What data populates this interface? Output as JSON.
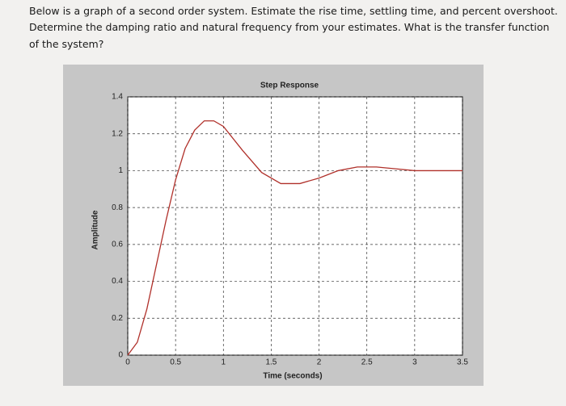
{
  "question": [
    "Below is a graph of a second order system.  Estimate the rise time, settling time, and percent overshoot.",
    "Determine the damping ratio and natural frequency from your estimates.  What is the transfer function",
    "of the system?"
  ],
  "chart_data": {
    "type": "line",
    "title": "Step Response",
    "xlabel": "Time (seconds)",
    "ylabel": "Amplitude",
    "x": [
      0,
      0.1,
      0.2,
      0.3,
      0.4,
      0.5,
      0.6,
      0.7,
      0.8,
      0.9,
      1.0,
      1.2,
      1.4,
      1.6,
      1.8,
      2.0,
      2.2,
      2.4,
      2.6,
      2.8,
      3.0,
      3.2,
      3.5
    ],
    "series": [
      {
        "color": "#b0302a",
        "values": [
          0,
          0.07,
          0.25,
          0.49,
          0.73,
          0.95,
          1.12,
          1.22,
          1.27,
          1.27,
          1.24,
          1.11,
          0.99,
          0.93,
          0.93,
          0.96,
          1.0,
          1.02,
          1.02,
          1.01,
          1.0,
          1.0,
          1.0
        ]
      }
    ],
    "xlim": [
      0,
      3.5
    ],
    "xticks": [
      0,
      0.5,
      1,
      1.5,
      2,
      2.5,
      3,
      3.5
    ],
    "ylim": [
      0,
      1.4
    ],
    "yticks": [
      0,
      0.2,
      0.4,
      0.6,
      0.8,
      1,
      1.2,
      1.4
    ],
    "grid": true
  }
}
